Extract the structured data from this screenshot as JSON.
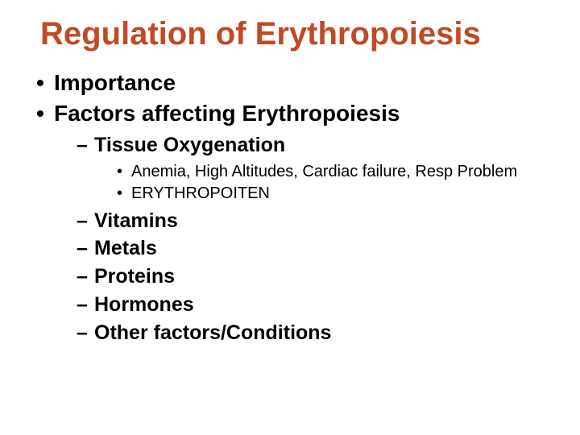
{
  "title": "Regulation of Erythropoiesis",
  "colors": {
    "title": "#c04a24",
    "body": "#000000",
    "background": "#ffffff"
  },
  "typography": {
    "title_fontsize": 40,
    "level1_fontsize": 28,
    "level2_fontsize": 25,
    "level3_fontsize": 20,
    "font_family": "Arial",
    "title_weight": "bold",
    "level1_weight": "bold",
    "level2_weight": "bold",
    "level3_weight": "normal"
  },
  "bullets": {
    "level1_marker": "•",
    "level2_marker": "–",
    "level3_marker": "•"
  },
  "items": {
    "l1_0": "Importance",
    "l1_1": "Factors affecting Erythropoiesis",
    "l2_0": "Tissue Oxygenation",
    "l3_0": "Anemia, High Altitudes, Cardiac failure, Resp Problem",
    "l3_1": "ERYTHROPOITEN",
    "l2_1": "Vitamins",
    "l2_2": "Metals",
    "l2_3": "Proteins",
    "l2_4": "Hormones",
    "l2_5": "Other factors/Conditions"
  }
}
